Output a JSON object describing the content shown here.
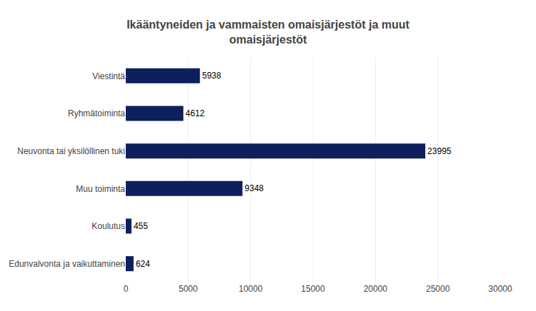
{
  "chart_data": {
    "type": "bar",
    "orientation": "horizontal",
    "title": "Ikääntyneiden ja vammaisten omaisjärjestöt ja muut\nomaisjärjestöt",
    "categories": [
      "Edunvalvonta ja vaikuttaminen",
      "Koulutus",
      "Muu toiminta",
      "Neuvonta tai yksilöllinen tuki",
      "Ryhmätoiminta",
      "Viestintä"
    ],
    "values": [
      624,
      455,
      9348,
      23995,
      4612,
      5938
    ],
    "color": "#0d1f5c",
    "xlim": [
      0,
      30000
    ],
    "xticks": [
      0,
      5000,
      10000,
      15000,
      20000,
      25000,
      30000
    ],
    "grid": true,
    "data_labels": true
  }
}
